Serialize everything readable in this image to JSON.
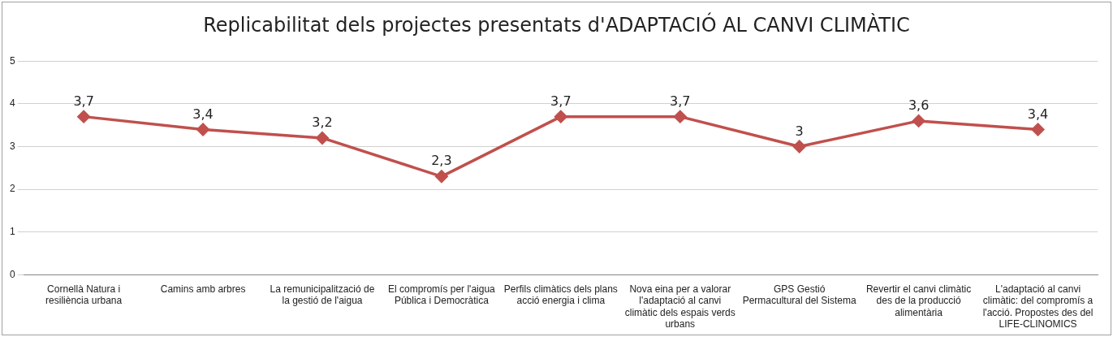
{
  "chart_data": {
    "type": "line",
    "title": "Replicabilitat dels projectes presentats d'ADAPTACIÓ AL CANVI CLIMÀTIC",
    "categories": [
      "Cornellà Natura i resiliència urbana",
      "Camins amb arbres",
      "La remunicipalització de la gestió de l'aigua",
      "El compromís per l'aigua Pública i Democràtica",
      "Perfils climàtics dels plans acció energia i clima",
      "Nova eina per a valorar l'adaptació al canvi climàtic dels espais verds urbans",
      "GPS Gestió Permacultural del Sistema",
      "Revertir el canvi climàtic des de la producció alimentària",
      "L'adaptació al canvi climàtic: del compromís a l'acció. Propostes des del LIFE-CLINOMICS"
    ],
    "values": [
      3.7,
      3.4,
      3.2,
      2.3,
      3.7,
      3.7,
      3,
      3.6,
      3.4
    ],
    "value_labels": [
      "3,7",
      "3,4",
      "3,2",
      "2,3",
      "3,7",
      "3,7",
      "3",
      "3,6",
      "3,4"
    ],
    "color": "#c0504d",
    "ylim": [
      0,
      5
    ],
    "yticks": [
      0,
      1,
      2,
      3,
      4,
      5
    ],
    "grid": "y",
    "legend": false,
    "marker": "diamond",
    "line_style": "solid"
  }
}
